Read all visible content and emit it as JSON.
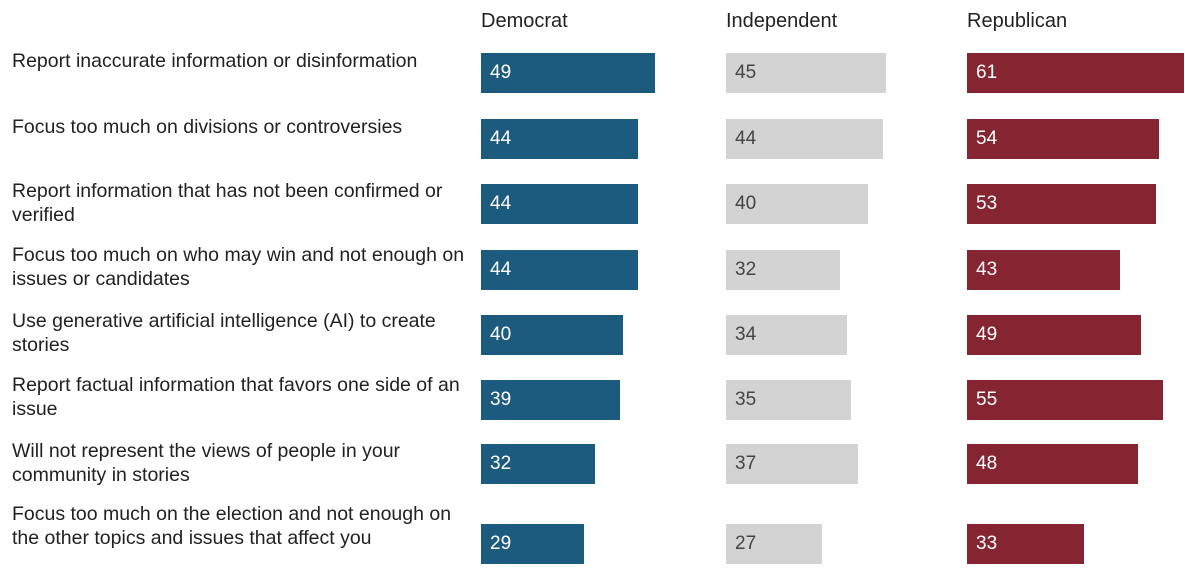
{
  "chart_data": {
    "type": "bar",
    "orientation": "horizontal",
    "categories": [
      "Report inaccurate information or disinformation",
      "Focus too much on divisions or controversies",
      "Report information that has not been confirmed or verified",
      "Focus too much on who may win and not enough on issues or candidates",
      "Use generative artificial intelligence (AI) to create stories",
      "Report factual information that favors one side of an issue",
      "Will not represent the views of people in your community in stories",
      "Focus too much on the election and not enough on the other topics and issues that affect you"
    ],
    "series": [
      {
        "name": "Democrat",
        "color": "#1d5b7e",
        "text_color": "#ffffff",
        "values": [
          49,
          44,
          44,
          44,
          40,
          39,
          32,
          29
        ]
      },
      {
        "name": "Independent",
        "color": "#d3d3d3",
        "text_color": "#444444",
        "values": [
          45,
          44,
          40,
          32,
          34,
          35,
          37,
          27
        ]
      },
      {
        "name": "Republican",
        "color": "#852532",
        "text_color": "#ffffff",
        "values": [
          61,
          54,
          53,
          43,
          49,
          55,
          48,
          33
        ]
      }
    ],
    "xlim": [
      0,
      61
    ],
    "legend": "column headers",
    "grid": false
  }
}
